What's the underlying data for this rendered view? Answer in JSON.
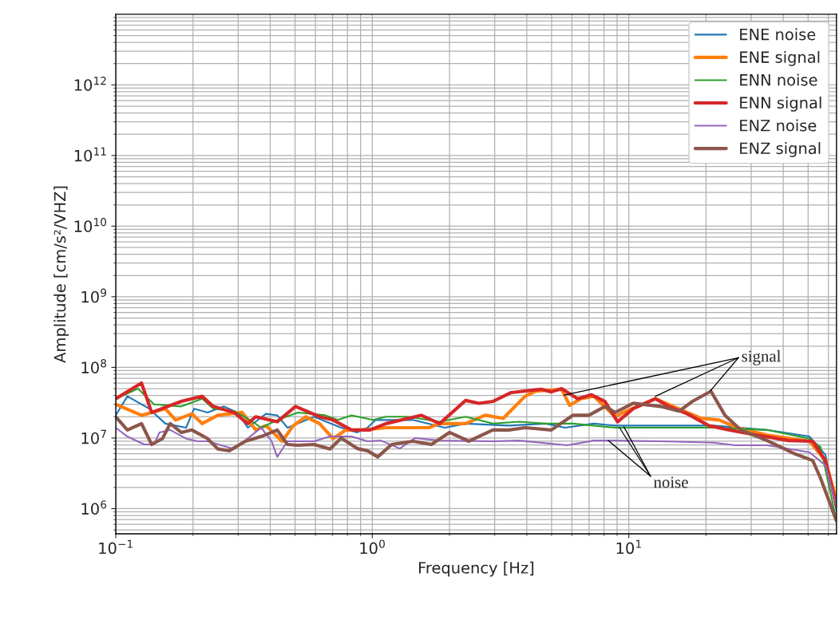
{
  "chart_data": {
    "type": "line",
    "xlabel": "Frequency [Hz]",
    "ylabel": "Amplitude [cm/s²/VHZ]",
    "log": "xy",
    "grid": true,
    "legend": "top right",
    "xlim": [
      0.1,
      64.5
    ],
    "xticks": [
      {
        "value": 0.1,
        "label": "10$^{−1}$"
      },
      {
        "value": 1,
        "label": "10$^{0}$"
      },
      {
        "value": 10,
        "label": "10$^{1}$"
      }
    ],
    "ylim": [
      440000,
      10000000000000
    ],
    "yticks": [
      {
        "value": 1000000,
        "label": "10$^{6}$"
      },
      {
        "value": 10000000,
        "label": "10$^{7}$"
      },
      {
        "value": 100000000,
        "label": "10$^{8}$"
      },
      {
        "value": 1000000000,
        "label": "10$^{9}$"
      },
      {
        "value": 10000000000,
        "label": "10$^{10}$"
      },
      {
        "value": 100000000000,
        "label": "10$^{11}$"
      },
      {
        "value": 1000000000000,
        "label": "10$^{12}$"
      }
    ],
    "annotations": [
      {
        "text": "signal",
        "x": 12.7,
        "y": 39000000.0
      },
      {
        "text": "noise",
        "x": 9.2,
        "y": 14000000.0
      }
    ],
    "series": [
      {
        "name": "ENE noise",
        "color": "#1f77b4",
        "x": [
          0.1,
          0.111,
          0.135,
          0.156,
          0.188,
          0.202,
          0.228,
          0.264,
          0.298,
          0.327,
          0.385,
          0.426,
          0.467,
          0.513,
          0.593,
          0.756,
          0.873,
          0.958,
          1.03,
          1.44,
          1.92,
          2.31,
          3.41,
          4.74,
          5.64,
          7.3,
          8.85,
          13.3,
          21.4,
          34.6,
          50.6,
          58.4,
          64.5
        ],
        "values": [
          21000000.0,
          39000000.0,
          26000000.0,
          16000000.0,
          14000000.0,
          26000000.0,
          23000000.0,
          28000000.0,
          23000000.0,
          14000000.0,
          22000000.0,
          21000000.0,
          14000000.0,
          16000000.0,
          20000000.0,
          14000000.0,
          12000000.0,
          14000000.0,
          18000000.0,
          18000000.0,
          14000000.0,
          16000000.0,
          15000000.0,
          16000000.0,
          14000000.0,
          16000000.0,
          15000000.0,
          15000000.0,
          15000000.0,
          13000000.0,
          10500000.0,
          5800000.0,
          940000.0
        ]
      },
      {
        "name": "ENE signal",
        "color": "#ff7f0e",
        "x": [
          0.1,
          0.126,
          0.156,
          0.171,
          0.198,
          0.217,
          0.25,
          0.311,
          0.351,
          0.385,
          0.445,
          0.492,
          0.551,
          0.623,
          0.703,
          0.789,
          0.912,
          1.13,
          1.66,
          1.83,
          2.31,
          2.75,
          3.24,
          3.94,
          4.32,
          5.47,
          5.88,
          6.5,
          7.3,
          8.85,
          9.51,
          12.7,
          14.9,
          19.1,
          22.5,
          26.5,
          34.6,
          50.6,
          58.4,
          64.5
        ],
        "values": [
          30000000.0,
          21000000.0,
          26000000.0,
          18000000.0,
          22000000.0,
          16000000.0,
          21000000.0,
          23000000.0,
          13000000.0,
          15000000.0,
          9000000.0,
          15000000.0,
          20000000.0,
          16000000.0,
          9800000.0,
          13000000.0,
          13000000.0,
          14000000.0,
          14000000.0,
          16000000.0,
          16000000.0,
          21000000.0,
          19000000.0,
          39000000.0,
          46000000.0,
          49000000.0,
          29000000.0,
          36000000.0,
          39000000.0,
          20000000.0,
          23000000.0,
          36000000.0,
          28000000.0,
          19000000.0,
          18000000.0,
          14000000.0,
          11000000.0,
          9000000.0,
          4800000.0,
          1300000.0
        ]
      },
      {
        "name": "ENN noise",
        "color": "#2ca02c",
        "x": [
          0.1,
          0.122,
          0.141,
          0.18,
          0.217,
          0.24,
          0.289,
          0.334,
          0.369,
          0.426,
          0.513,
          0.655,
          0.735,
          0.83,
          1.007,
          1.13,
          1.37,
          1.83,
          2.31,
          2.95,
          3.74,
          4.74,
          6.05,
          8.85,
          13.3,
          21.4,
          34.6,
          50.6,
          55.9,
          64.5
        ],
        "values": [
          36000000.0,
          50000000.0,
          30000000.0,
          28000000.0,
          36000000.0,
          26000000.0,
          24000000.0,
          18000000.0,
          14000000.0,
          18000000.0,
          23000000.0,
          21000000.0,
          18000000.0,
          21000000.0,
          18000000.0,
          20000000.0,
          20000000.0,
          17000000.0,
          20000000.0,
          16000000.0,
          17000000.0,
          16000000.0,
          16000000.0,
          14000000.0,
          14000000.0,
          14000000.0,
          13000000.0,
          9800000.0,
          7500000.0,
          670000.0
        ]
      },
      {
        "name": "ENN signal",
        "color": "#d62728",
        "x": [
          0.1,
          0.126,
          0.138,
          0.18,
          0.217,
          0.24,
          0.289,
          0.327,
          0.351,
          0.426,
          0.502,
          0.623,
          0.703,
          0.83,
          0.979,
          1.13,
          1.55,
          1.83,
          2.31,
          2.61,
          2.95,
          3.48,
          4.54,
          4.99,
          5.47,
          6.32,
          7.14,
          8.07,
          9.04,
          10.4,
          12.7,
          14.3,
          16.9,
          20.5,
          24.7,
          31.5,
          42.0,
          52.1,
          58.4,
          64.5
        ],
        "values": [
          36000000.0,
          60000000.0,
          23000000.0,
          33000000.0,
          39000000.0,
          28000000.0,
          23000000.0,
          16000000.0,
          20000000.0,
          17000000.0,
          28000000.0,
          20000000.0,
          18000000.0,
          13000000.0,
          13000000.0,
          16000000.0,
          21000000.0,
          16000000.0,
          34000000.0,
          31000000.0,
          33000000.0,
          44000000.0,
          49000000.0,
          45000000.0,
          50000000.0,
          36000000.0,
          41000000.0,
          33000000.0,
          17000000.0,
          26000000.0,
          36000000.0,
          28000000.0,
          22000000.0,
          15000000.0,
          13000000.0,
          11000000.0,
          9200000.0,
          9000000.0,
          4800000.0,
          1100000.0
        ]
      },
      {
        "name": "ENZ noise",
        "color": "#9467bd",
        "x": [
          0.1,
          0.111,
          0.129,
          0.141,
          0.148,
          0.163,
          0.188,
          0.208,
          0.228,
          0.289,
          0.334,
          0.369,
          0.405,
          0.426,
          0.467,
          0.593,
          0.684,
          0.83,
          0.958,
          1.08,
          1.28,
          1.47,
          1.83,
          2.95,
          3.74,
          5.75,
          7.3,
          8.85,
          13.3,
          21.4,
          26.0,
          34.6,
          50.6,
          58.4,
          64.5
        ],
        "values": [
          14000000.0,
          10500000.0,
          8100000.0,
          8100000.0,
          12000000.0,
          13000000.0,
          9800000.0,
          9000000.0,
          9000000.0,
          7000000.0,
          10500000.0,
          14000000.0,
          9000000.0,
          5400000.0,
          9000000.0,
          9000000.0,
          10500000.0,
          10500000.0,
          9000000.0,
          9200000.0,
          7100000.0,
          10000000.0,
          9200000.0,
          9000000.0,
          9200000.0,
          7900000.0,
          9200000.0,
          9200000.0,
          9000000.0,
          8600000.0,
          7900000.0,
          7900000.0,
          6300000.0,
          4100000.0,
          1100000.0
        ]
      },
      {
        "name": "ENZ signal",
        "color": "#8c564b",
        "x": [
          0.1,
          0.111,
          0.126,
          0.138,
          0.152,
          0.163,
          0.18,
          0.198,
          0.228,
          0.25,
          0.277,
          0.32,
          0.369,
          0.426,
          0.467,
          0.513,
          0.593,
          0.684,
          0.756,
          0.873,
          0.958,
          1.05,
          1.19,
          1.44,
          1.7,
          2.0,
          2.38,
          2.95,
          3.41,
          3.94,
          4.99,
          6.05,
          6.99,
          8.07,
          8.85,
          10.4,
          13.3,
          15.7,
          17.7,
          20.9,
          23.7,
          27.3,
          34.6,
          43.8,
          52.1,
          55.9,
          64.5
        ],
        "values": [
          20000000.0,
          13000000.0,
          16000000.0,
          8100000.0,
          9800000.0,
          16000000.0,
          12000000.0,
          13000000.0,
          9800000.0,
          7000000.0,
          6600000.0,
          9000000.0,
          10500000.0,
          13000000.0,
          8100000.0,
          7900000.0,
          8100000.0,
          7000000.0,
          10000000.0,
          7100000.0,
          6600000.0,
          5400000.0,
          8100000.0,
          9000000.0,
          8100000.0,
          12000000.0,
          9000000.0,
          13000000.0,
          13000000.0,
          14000000.0,
          13000000.0,
          21000000.0,
          21000000.0,
          28000000.0,
          23000000.0,
          31000000.0,
          28000000.0,
          24000000.0,
          33000000.0,
          46000000.0,
          21000000.0,
          13000000.0,
          9200000.0,
          6100000.0,
          4800000.0,
          2700000.0,
          670000.0
        ]
      }
    ]
  }
}
